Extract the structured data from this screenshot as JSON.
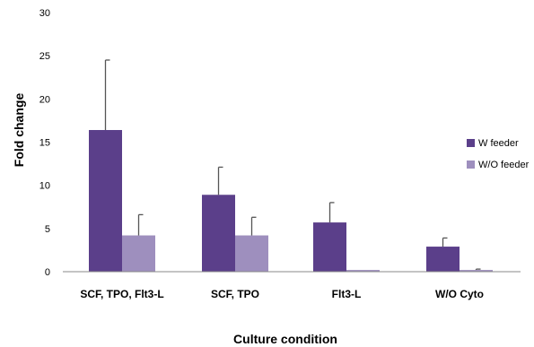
{
  "chart_data": {
    "type": "bar",
    "xlabel": "Culture condition",
    "ylabel": "Fold change",
    "ylim": [
      0,
      30
    ],
    "yticks": [
      0,
      5,
      10,
      15,
      20,
      25,
      30
    ],
    "categories": [
      "SCF, TPO, Flt3-L",
      "SCF, TPO",
      "Flt3-L",
      "W/O Cyto"
    ],
    "series": [
      {
        "name": "W feeder",
        "color": "#5b3f8a",
        "values": [
          16.4,
          8.9,
          5.7,
          2.9
        ],
        "error": [
          8.1,
          3.2,
          2.3,
          1.0
        ]
      },
      {
        "name": "W/O feeder",
        "color": "#9e8fbe",
        "values": [
          4.2,
          4.2,
          0.2,
          0.2
        ],
        "error": [
          2.4,
          2.1,
          0.0,
          0.1
        ]
      }
    ],
    "legend": "right",
    "grid": false
  }
}
